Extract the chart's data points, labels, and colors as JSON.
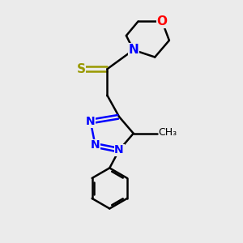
{
  "bg_color": "#ebebeb",
  "bond_color": "#000000",
  "n_color": "#0000ff",
  "o_color": "#ff0000",
  "s_color": "#999900",
  "line_width": 1.8,
  "font_size": 11,
  "fig_size": [
    3.0,
    3.0
  ],
  "dpi": 100,
  "xlim": [
    0,
    10
  ],
  "ylim": [
    0,
    10
  ]
}
